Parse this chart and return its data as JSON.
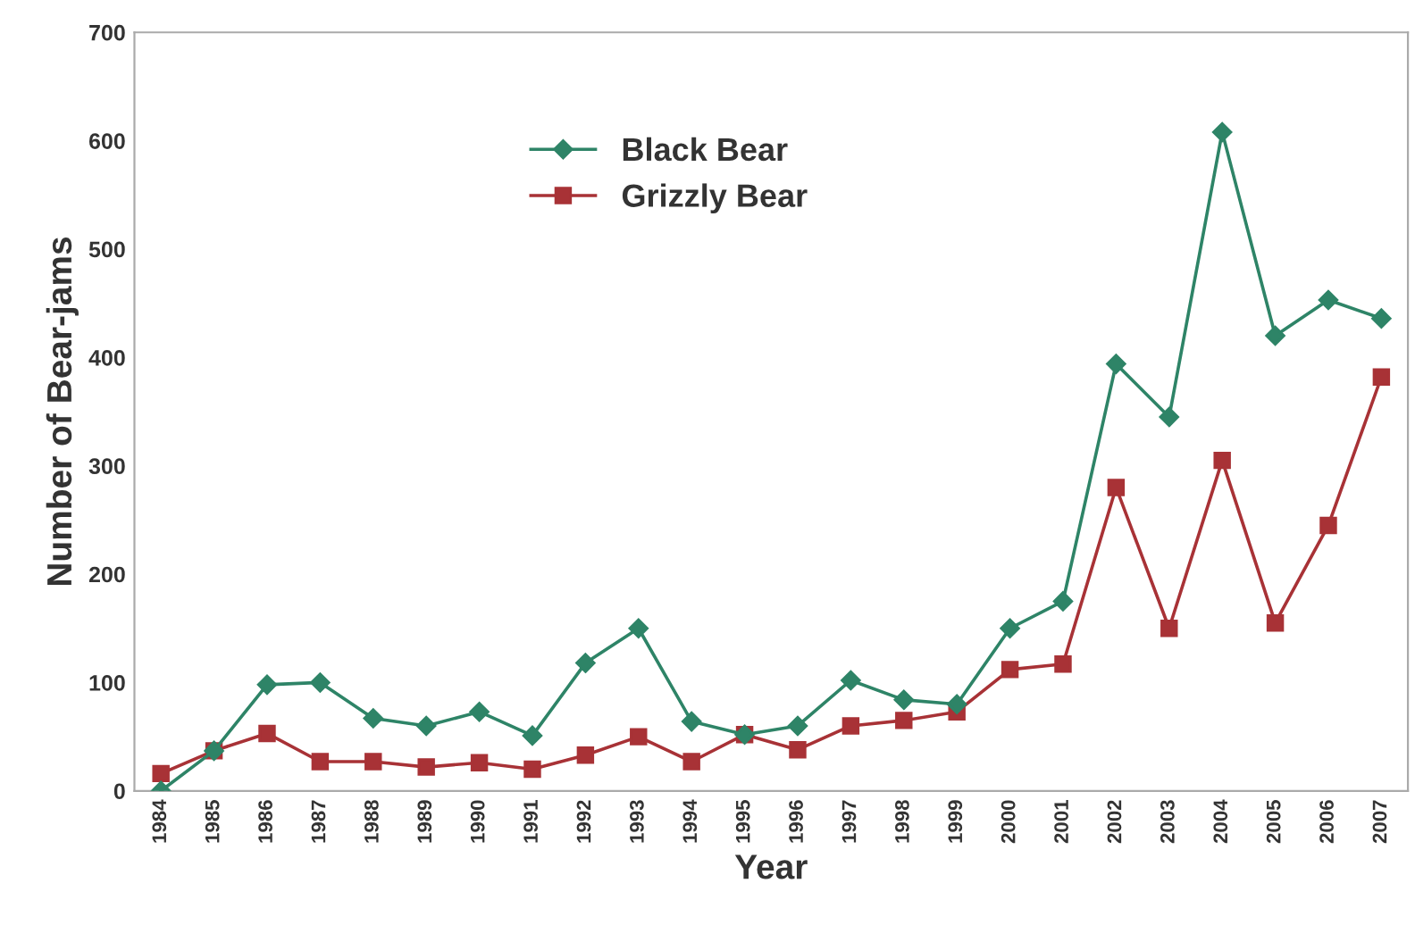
{
  "chart_data": {
    "type": "line",
    "xlabel": "Year",
    "ylabel": "Number of Bear-jams",
    "categories": [
      "1984",
      "1985",
      "1986",
      "1987",
      "1988",
      "1989",
      "1990",
      "1991",
      "1992",
      "1993",
      "1994",
      "1995",
      "1996",
      "1997",
      "1998",
      "1999",
      "2000",
      "2001",
      "2002",
      "2003",
      "2004",
      "2005",
      "2006",
      "2007"
    ],
    "series": [
      {
        "name": "Black Bear",
        "color": "#2e8467",
        "marker": "diamond",
        "values": [
          0,
          37,
          98,
          100,
          67,
          60,
          73,
          51,
          118,
          150,
          64,
          52,
          60,
          102,
          84,
          80,
          150,
          175,
          394,
          345,
          608,
          420,
          453,
          436
        ]
      },
      {
        "name": "Grizzly Bear",
        "color": "#a83236",
        "marker": "square",
        "values": [
          16,
          37,
          53,
          27,
          27,
          22,
          26,
          20,
          33,
          50,
          27,
          52,
          38,
          60,
          65,
          73,
          112,
          117,
          280,
          150,
          305,
          155,
          245,
          382
        ]
      }
    ],
    "ylim": [
      0,
      700
    ],
    "yticks": [
      0,
      100,
      200,
      300,
      400,
      500,
      600,
      700
    ],
    "grid": false,
    "legend": "top",
    "line_style": "solid"
  }
}
